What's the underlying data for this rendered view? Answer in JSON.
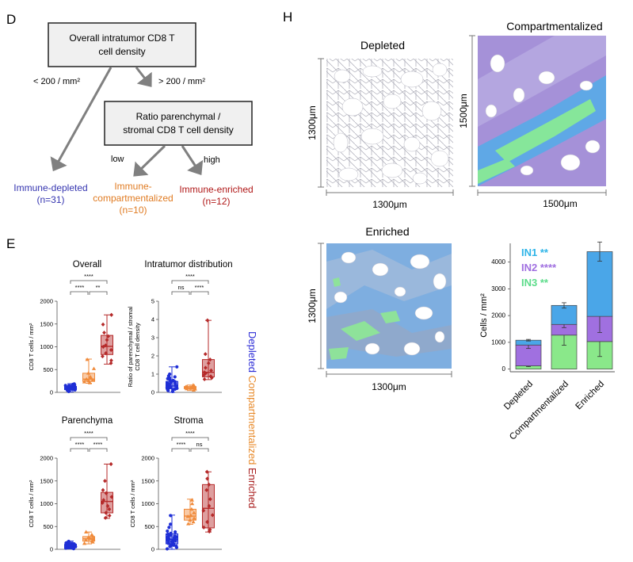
{
  "panels": {
    "D": {
      "letter": "D",
      "root_box": "Overall intratumor CD8 T cell density",
      "root_box_lines": [
        "Overall intratumor CD8 T",
        "cell density"
      ],
      "branch_low": "< 200 / mm²",
      "branch_high": "> 200 / mm²",
      "ratio_box_lines": [
        "Ratio parenchymal /",
        "stromal CD8 T cell density"
      ],
      "edge_low": "low",
      "edge_high": "high",
      "outcomes": [
        {
          "lines": [
            "Immune-depleted",
            "(n=31)"
          ],
          "color": "#3535b0"
        },
        {
          "lines": [
            "Immune-",
            "compartmentalized",
            "(n=10)"
          ],
          "color": "#e07b22"
        },
        {
          "lines": [
            "Immune-enriched",
            "(n=12)"
          ],
          "color": "#b01818"
        }
      ]
    },
    "E": {
      "letter": "E"
    },
    "H": {
      "letter": "H",
      "images": [
        {
          "title": "Depleted",
          "width_label": "1300μm",
          "height_label": "1300μm"
        },
        {
          "title": "Compartmentalized",
          "width_label": "1500μm",
          "height_label": "1500μm"
        },
        {
          "title": "Enriched",
          "width_label": "1300μm",
          "height_label": "1300μm"
        }
      ]
    }
  },
  "vertical_legend": [
    {
      "text": "Depleted ",
      "color": "#2b2bd6"
    },
    {
      "text": "Compartmentalized ",
      "color": "#e88a2a"
    },
    {
      "text": "Enriched",
      "color": "#a81c1c"
    }
  ],
  "colors": {
    "depleted": "#1f2fd6",
    "compartmentalized": "#f08a3a",
    "enriched": "#b52a2a",
    "IN1": "#4aa6e8",
    "IN2": "#a070e0",
    "IN3": "#8ae88a",
    "arrow": "#808080"
  },
  "chart_data": [
    {
      "type": "box",
      "title": "Overall",
      "ylabel": "CD8 T cells / mm²",
      "ylim": [
        0,
        2000
      ],
      "yticks": [
        0,
        500,
        1000,
        1500,
        2000
      ],
      "categories": [
        "Depleted",
        "Compartmentalized",
        "Enriched"
      ],
      "boxes": [
        {
          "min": 10,
          "q1": 60,
          "median": 90,
          "q3": 130,
          "max": 190,
          "points": [
            20,
            40,
            55,
            60,
            70,
            80,
            85,
            90,
            95,
            100,
            105,
            110,
            120,
            130,
            140,
            150,
            160,
            175,
            185,
            60,
            75,
            95,
            115,
            125,
            135,
            145,
            50,
            65,
            88,
            102,
            118
          ]
        },
        {
          "min": 200,
          "q1": 240,
          "median": 290,
          "q3": 420,
          "max": 730,
          "points": [
            210,
            230,
            250,
            270,
            290,
            310,
            340,
            420,
            520,
            720
          ]
        },
        {
          "min": 620,
          "q1": 830,
          "median": 1010,
          "q3": 1250,
          "max": 1700,
          "points": [
            640,
            700,
            790,
            860,
            930,
            1000,
            1030,
            1150,
            1230,
            1310,
            1490,
            1700
          ]
        }
      ],
      "significance": [
        {
          "pair": [
            0,
            2
          ],
          "label": "****"
        },
        {
          "pair": [
            0,
            1
          ],
          "label": "****"
        },
        {
          "pair": [
            1,
            2
          ],
          "label": "**"
        }
      ]
    },
    {
      "type": "box",
      "title": "Intratumor distribution",
      "ylabel": "Ratio of parenchymal / stromal CD8 T cell density",
      "ylim": [
        0,
        5
      ],
      "yticks": [
        0,
        1,
        2,
        3,
        4,
        5
      ],
      "categories": [
        "Depleted",
        "Compartmentalized",
        "Enriched"
      ],
      "boxes": [
        {
          "min": 0.0,
          "q1": 0.2,
          "median": 0.35,
          "q3": 0.6,
          "max": 1.4,
          "points": [
            0.05,
            0.1,
            0.15,
            0.2,
            0.22,
            0.25,
            0.28,
            0.3,
            0.33,
            0.35,
            0.38,
            0.4,
            0.45,
            0.5,
            0.55,
            0.6,
            0.65,
            0.7,
            0.8,
            0.9,
            1.0,
            1.4,
            0.12,
            0.18,
            0.27,
            0.37,
            0.42,
            0.48,
            0.58,
            0.75,
            0.85
          ]
        },
        {
          "min": 0.1,
          "q1": 0.2,
          "median": 0.25,
          "q3": 0.32,
          "max": 0.4,
          "points": [
            0.12,
            0.18,
            0.2,
            0.22,
            0.25,
            0.27,
            0.3,
            0.32,
            0.35,
            0.4
          ]
        },
        {
          "min": 0.7,
          "q1": 0.85,
          "median": 1.1,
          "q3": 1.8,
          "max": 3.95,
          "points": [
            0.72,
            0.8,
            0.88,
            0.95,
            1.05,
            1.1,
            1.2,
            1.35,
            1.6,
            1.8,
            2.1,
            3.95
          ]
        }
      ],
      "significance": [
        {
          "pair": [
            0,
            2
          ],
          "label": "****"
        },
        {
          "pair": [
            0,
            1
          ],
          "label": "ns"
        },
        {
          "pair": [
            1,
            2
          ],
          "label": "****"
        }
      ]
    },
    {
      "type": "box",
      "title": "Parenchyma",
      "ylabel": "CD8 T cells / mm²",
      "ylim": [
        0,
        2000
      ],
      "yticks": [
        0,
        500,
        1000,
        1500,
        2000
      ],
      "categories": [
        "Depleted",
        "Compartmentalized",
        "Enriched"
      ],
      "boxes": [
        {
          "min": 10,
          "q1": 40,
          "median": 70,
          "q3": 110,
          "max": 180,
          "points": [
            15,
            25,
            35,
            40,
            45,
            50,
            55,
            60,
            65,
            70,
            75,
            80,
            85,
            90,
            95,
            100,
            110,
            120,
            130,
            150,
            175,
            30,
            42,
            58,
            68,
            78,
            88,
            98,
            105,
            115,
            140
          ]
        },
        {
          "min": 120,
          "q1": 180,
          "median": 230,
          "q3": 280,
          "max": 380,
          "points": [
            130,
            160,
            180,
            200,
            220,
            240,
            260,
            280,
            320,
            380
          ]
        },
        {
          "min": 680,
          "q1": 800,
          "median": 1050,
          "q3": 1250,
          "max": 1870,
          "points": [
            690,
            740,
            800,
            880,
            950,
            1020,
            1080,
            1150,
            1230,
            1300,
            1500,
            1870
          ]
        }
      ],
      "significance": [
        {
          "pair": [
            0,
            2
          ],
          "label": "****"
        },
        {
          "pair": [
            0,
            1
          ],
          "label": "****"
        },
        {
          "pair": [
            1,
            2
          ],
          "label": "****"
        }
      ]
    },
    {
      "type": "box",
      "title": "Stroma",
      "ylabel": "CD8 T cells / mm²",
      "ylim": [
        0,
        2000
      ],
      "yticks": [
        0,
        500,
        1000,
        1500,
        2000
      ],
      "categories": [
        "Depleted",
        "Compartmentalized",
        "Enriched"
      ],
      "boxes": [
        {
          "min": 0,
          "q1": 120,
          "median": 220,
          "q3": 340,
          "max": 750,
          "points": [
            10,
            40,
            70,
            100,
            120,
            140,
            160,
            180,
            200,
            210,
            220,
            230,
            250,
            270,
            290,
            310,
            330,
            350,
            400,
            480,
            740,
            60,
            90,
            130,
            170,
            190,
            240,
            260,
            300,
            380,
            550
          ]
        },
        {
          "min": 550,
          "q1": 640,
          "median": 730,
          "q3": 880,
          "max": 1100,
          "points": [
            560,
            600,
            640,
            680,
            720,
            740,
            800,
            880,
            1000,
            1080
          ]
        },
        {
          "min": 380,
          "q1": 470,
          "median": 900,
          "q3": 1420,
          "max": 1700,
          "points": [
            390,
            430,
            480,
            600,
            750,
            850,
            950,
            1100,
            1300,
            1420,
            1550,
            1700
          ]
        }
      ],
      "significance": [
        {
          "pair": [
            0,
            2
          ],
          "label": "****"
        },
        {
          "pair": [
            0,
            1
          ],
          "label": "****"
        },
        {
          "pair": [
            1,
            2
          ],
          "label": "ns"
        }
      ]
    },
    {
      "type": "stacked-bar",
      "ylabel": "Cells / mm²",
      "ylim": [
        -100,
        4700
      ],
      "yticks": [
        0,
        1000,
        2000,
        3000,
        4000
      ],
      "categories": [
        "Depleted",
        "Compartmentalized",
        "Enriched"
      ],
      "series": [
        {
          "name": "IN3",
          "color": "#8ae88a",
          "values": [
            120,
            1270,
            1030
          ],
          "err": [
            30,
            380,
            560
          ]
        },
        {
          "name": "IN2",
          "color": "#a070e0",
          "values": [
            780,
            400,
            940
          ],
          "err": [
            130,
            120,
            600
          ]
        },
        {
          "name": "IN1",
          "color": "#4aa6e8",
          "values": [
            180,
            710,
            2420
          ],
          "err": [
            30,
            100,
            360
          ]
        }
      ],
      "legend": [
        {
          "name": "IN1",
          "stars": "**",
          "color": "#2fb5e8"
        },
        {
          "name": "IN2",
          "stars": "****",
          "color": "#a070e0"
        },
        {
          "name": "IN3",
          "stars": "**",
          "color": "#5cdc8a"
        }
      ]
    }
  ]
}
